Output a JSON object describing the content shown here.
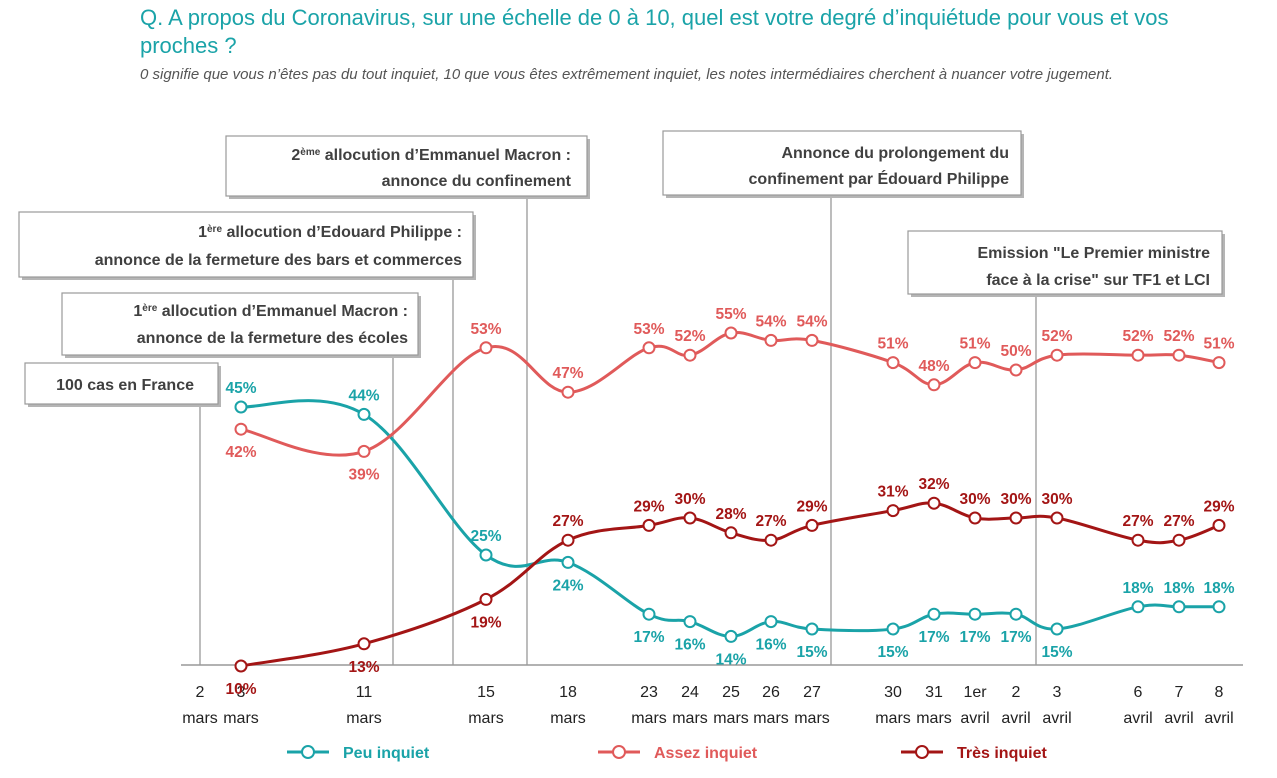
{
  "title": "Q. A propos du Coronavirus, sur une échelle de 0 à 10, quel est votre degré d’inquiétude pour vous et vos proches ?",
  "subtitle": "0 signifie que vous n’êtes pas du tout inquiet, 10 que vous êtes extrêmement inquiet, les notes intermédiaires cherchent à nuancer votre jugement.",
  "colors": {
    "peu": "#1AA3A8",
    "assez": "#E05A5A",
    "tres": "#A31515",
    "annotation_line": "#999999",
    "axis": "#999999"
  },
  "chart_data": {
    "type": "line",
    "title": "",
    "xlabel": "",
    "ylabel": "",
    "grid": false,
    "legend_position": "bottom",
    "x_ticks": [
      {
        "top": "2",
        "bottom": "mars"
      },
      {
        "top": "3",
        "bottom": "mars"
      },
      {
        "top": "11",
        "bottom": "mars"
      },
      {
        "top": "15",
        "bottom": "mars"
      },
      {
        "top": "18",
        "bottom": "mars"
      },
      {
        "top": "23",
        "bottom": "mars"
      },
      {
        "top": "24",
        "bottom": "mars"
      },
      {
        "top": "25",
        "bottom": "mars"
      },
      {
        "top": "26",
        "bottom": "mars"
      },
      {
        "top": "27",
        "bottom": "mars"
      },
      {
        "top": "30",
        "bottom": "mars"
      },
      {
        "top": "31",
        "bottom": "mars"
      },
      {
        "top": "1er",
        "bottom": "avril"
      },
      {
        "top": "2",
        "bottom": "avril"
      },
      {
        "top": "3",
        "bottom": "avril"
      },
      {
        "top": "6",
        "bottom": "avril"
      },
      {
        "top": "7",
        "bottom": "avril"
      },
      {
        "top": "8",
        "bottom": "avril"
      }
    ],
    "series": [
      {
        "name": "Peu inquiet",
        "color_key": "peu",
        "points": [
          {
            "x": "3 mars",
            "y": 45,
            "label": "45%"
          },
          {
            "x": "11 mars",
            "y": 44,
            "label": "44%"
          },
          {
            "x": "15 mars",
            "y": 25,
            "label": "25%"
          },
          {
            "x": "18 mars",
            "y": 24,
            "label": "24%"
          },
          {
            "x": "23 mars",
            "y": 17,
            "label": "17%"
          },
          {
            "x": "24 mars",
            "y": 16,
            "label": "16%"
          },
          {
            "x": "25 mars",
            "y": 14,
            "label": "14%"
          },
          {
            "x": "26 mars",
            "y": 16,
            "label": "16%"
          },
          {
            "x": "27 mars",
            "y": 15,
            "label": "15%"
          },
          {
            "x": "30 mars",
            "y": 15,
            "label": "15%"
          },
          {
            "x": "31 mars",
            "y": 17,
            "label": "17%"
          },
          {
            "x": "1er avril",
            "y": 17,
            "label": "17%"
          },
          {
            "x": "2 avril",
            "y": 17,
            "label": "17%"
          },
          {
            "x": "3 avril",
            "y": 15,
            "label": "15%"
          },
          {
            "x": "6 avril",
            "y": 18,
            "label": "18%"
          },
          {
            "x": "7 avril",
            "y": 18,
            "label": "18%"
          },
          {
            "x": "8 avril",
            "y": 18,
            "label": "18%"
          }
        ]
      },
      {
        "name": "Assez inquiet",
        "color_key": "assez",
        "points": [
          {
            "x": "3 mars",
            "y": 42,
            "label": "42%"
          },
          {
            "x": "11 mars",
            "y": 39,
            "label": "39%"
          },
          {
            "x": "15 mars",
            "y": 53,
            "label": "53%"
          },
          {
            "x": "18 mars",
            "y": 47,
            "label": "47%"
          },
          {
            "x": "23 mars",
            "y": 53,
            "label": "53%"
          },
          {
            "x": "24 mars",
            "y": 52,
            "label": "52%"
          },
          {
            "x": "25 mars",
            "y": 55,
            "label": "55%"
          },
          {
            "x": "26 mars",
            "y": 54,
            "label": "54%"
          },
          {
            "x": "27 mars",
            "y": 54,
            "label": "54%"
          },
          {
            "x": "30 mars",
            "y": 51,
            "label": "51%"
          },
          {
            "x": "31 mars",
            "y": 48,
            "label": "48%"
          },
          {
            "x": "1er avril",
            "y": 51,
            "label": "51%"
          },
          {
            "x": "2 avril",
            "y": 50,
            "label": "50%"
          },
          {
            "x": "3 avril",
            "y": 52,
            "label": "52%"
          },
          {
            "x": "6 avril",
            "y": 52,
            "label": "52%"
          },
          {
            "x": "7 avril",
            "y": 52,
            "label": "52%"
          },
          {
            "x": "8 avril",
            "y": 51,
            "label": "51%"
          }
        ]
      },
      {
        "name": "Très inquiet",
        "color_key": "tres",
        "points": [
          {
            "x": "3 mars",
            "y": 10,
            "label": "10%"
          },
          {
            "x": "11 mars",
            "y": 13,
            "label": "13%"
          },
          {
            "x": "15 mars",
            "y": 19,
            "label": "19%"
          },
          {
            "x": "18 mars",
            "y": 27,
            "label": "27%"
          },
          {
            "x": "23 mars",
            "y": 29,
            "label": "29%"
          },
          {
            "x": "24 mars",
            "y": 30,
            "label": "30%"
          },
          {
            "x": "25 mars",
            "y": 28,
            "label": "28%"
          },
          {
            "x": "26 mars",
            "y": 27,
            "label": "27%"
          },
          {
            "x": "27 mars",
            "y": 29,
            "label": "29%"
          },
          {
            "x": "30 mars",
            "y": 31,
            "label": "31%"
          },
          {
            "x": "31 mars",
            "y": 32,
            "label": "32%"
          },
          {
            "x": "1er avril",
            "y": 30,
            "label": "30%"
          },
          {
            "x": "2 avril",
            "y": 30,
            "label": "30%"
          },
          {
            "x": "3 avril",
            "y": 30,
            "label": "30%"
          },
          {
            "x": "6 avril",
            "y": 27,
            "label": "27%"
          },
          {
            "x": "7 avril",
            "y": 27,
            "label": "27%"
          },
          {
            "x": "8 avril",
            "y": 29,
            "label": "29%"
          }
        ]
      }
    ],
    "annotations": [
      {
        "at": "2 mars",
        "lines": [
          {
            "text": "100 cas en France"
          }
        ]
      },
      {
        "at": "11 mars",
        "lines": [
          {
            "sup": "ère",
            "text": "1",
            "rest": " allocution d’Emmanuel Macron :"
          },
          {
            "text": "annonce de la fermeture des écoles"
          }
        ]
      },
      {
        "at": "11-15 mars",
        "lines": [
          {
            "sup": "ère",
            "text": "1",
            "rest": " allocution d’Edouard Philippe :"
          },
          {
            "text": "annonce de la fermeture des bars et commerces"
          }
        ]
      },
      {
        "at": "16 mars",
        "lines": [
          {
            "sup": "ème",
            "text": "2",
            "rest": " allocution d’Emmanuel Macron :"
          },
          {
            "text": "annonce du confinement"
          }
        ]
      },
      {
        "at": "28 mars",
        "lines": [
          {
            "text": "Annonce du prolongement du"
          },
          {
            "text": "confinement par Édouard Philippe"
          }
        ]
      },
      {
        "at": "3 avril",
        "lines": [
          {
            "text": "Emission \"Le Premier ministre"
          },
          {
            "text": "face à la crise\" sur TF1 et LCI"
          }
        ]
      }
    ]
  }
}
